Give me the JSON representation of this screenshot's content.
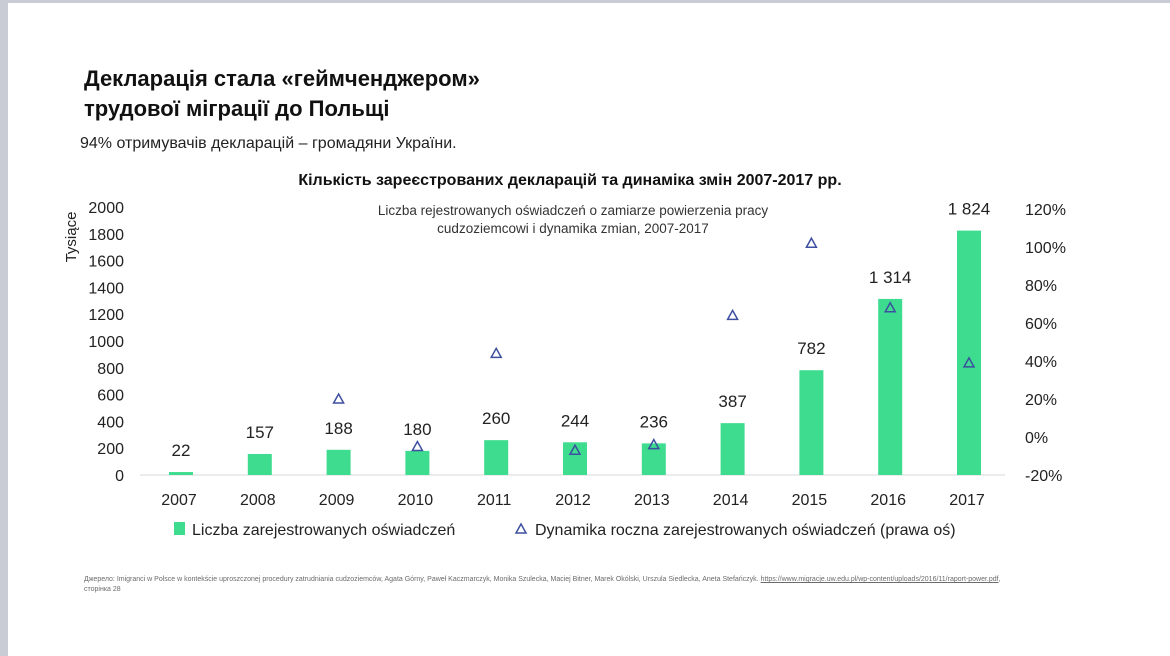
{
  "slide": {
    "title_line1": "Декларація стала «геймченджером»",
    "title_line2": "трудової міграції до Польщі",
    "subtitle": "94% отримувачів декларацій – громадяни України.",
    "source_text": "Джерело: Imigranci w Polsce w kontekście uproszczonej procedury zatrudniania cudzoziemców,  Agata Górny, Paweł Kaczmarczyk, Monika Szulecka, Maciej Bitner, Marek Okólski,  Urszula Siedlecka, Aneta Stefańczyk. ",
    "source_link": "https://www.migracje.uw.edu.pl/wp-content/uploads/2016/11/raport-power.pdf",
    "source_suffix": ", сторінка 28"
  },
  "chart_data": {
    "type": "bar",
    "title": "Кількість зареєстрованих декларацій та динаміка змін 2007-2017 pp.",
    "subtitle_line1": "Liczba rejestrowanych oświadczeń o zamiarze powierzenia pracy",
    "subtitle_line2": "cudzoziemcowi i dynamika zmian, 2007-2017",
    "ylabel": "Tysiące",
    "ylim": [
      0,
      2000
    ],
    "y_ticks": [
      "2000",
      "1800",
      "1600",
      "1400",
      "1200",
      "1000",
      "800",
      "600",
      "400",
      "200",
      "0"
    ],
    "y2lim": [
      -20,
      120
    ],
    "y2_ticks": [
      "120%",
      "100%",
      "80%",
      "60%",
      "40%",
      "20%",
      "0%",
      "-20%"
    ],
    "categories": [
      "2007",
      "2008",
      "2009",
      "2010",
      "2011",
      "2012",
      "2013",
      "2014",
      "2015",
      "2016",
      "2017"
    ],
    "series": [
      {
        "name": "Liczba zarejestrowanych oświadczeń",
        "kind": "bar",
        "color": "#3ddc8f",
        "values": [
          22,
          157,
          188,
          180,
          260,
          244,
          236,
          387,
          782,
          1314,
          1824
        ],
        "labels": [
          "22",
          "157",
          "188",
          "180",
          "260",
          "244",
          "236",
          "387",
          "782",
          "1 314",
          "1 824"
        ]
      },
      {
        "name": "Dynamika roczna zarejestrowanych oświadczeń (prawa oś)",
        "kind": "marker",
        "color": "#3d4f9f",
        "values": [
          null,
          null,
          20,
          -5,
          44,
          -7,
          -4,
          64,
          102,
          68,
          39
        ]
      }
    ]
  }
}
